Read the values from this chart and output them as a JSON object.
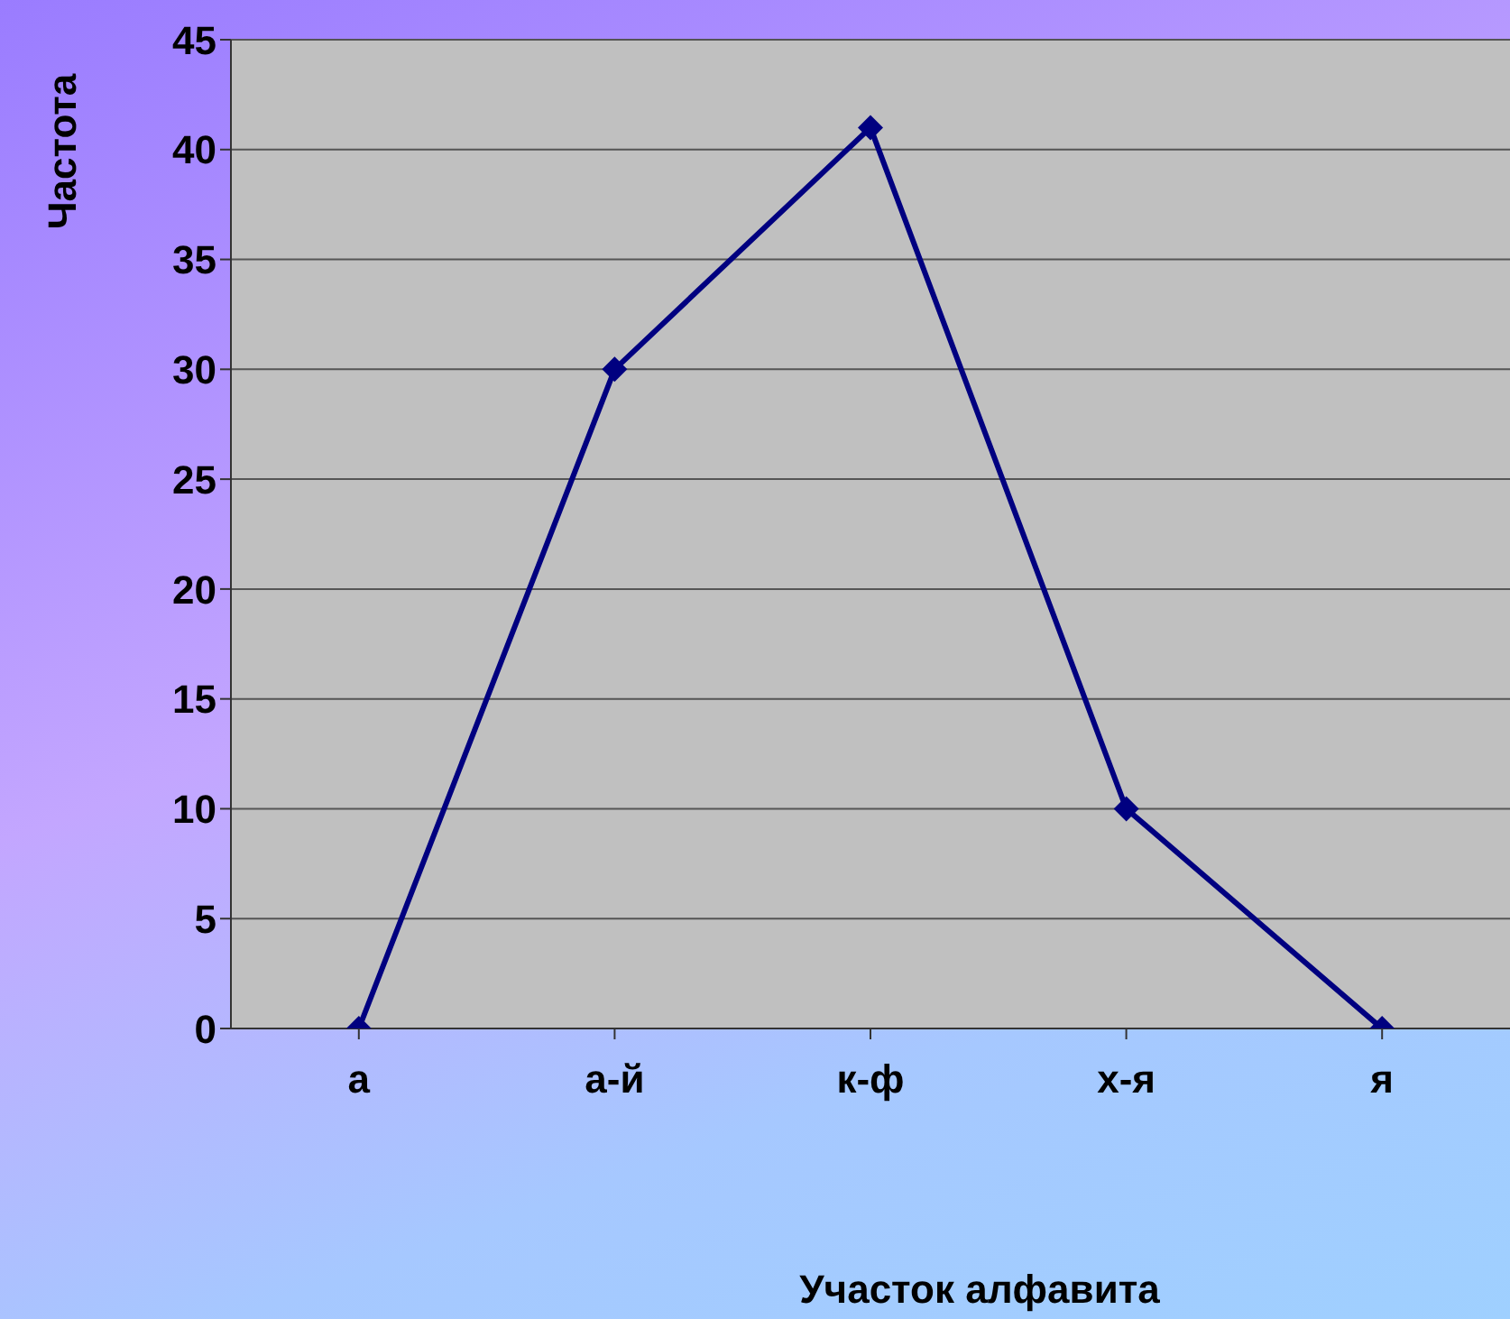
{
  "chart_data": {
    "type": "line",
    "xlabel": "Участок алфавита",
    "ylabel": "Частота",
    "categories": [
      "а",
      "а-й",
      "к-ф",
      "х-я",
      "я"
    ],
    "series": [
      {
        "color": "#000080",
        "values": [
          0,
          30,
          41,
          10,
          0
        ]
      }
    ],
    "ylim": [
      0,
      45
    ],
    "yticks": [
      0,
      5,
      10,
      15,
      20,
      25,
      30,
      35,
      40,
      45
    ],
    "grid": "y",
    "marker": "diamond",
    "line_style": "solid"
  }
}
